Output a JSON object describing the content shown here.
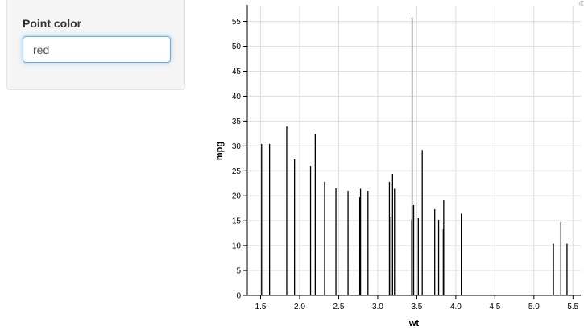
{
  "sidebar": {
    "label": "Point color",
    "input_value": "red"
  },
  "corner_mark": "©",
  "chart_data": {
    "type": "bar",
    "xlabel": "wt",
    "ylabel": "mpg",
    "xlim": [
      1.33,
      5.6
    ],
    "ylim": [
      0,
      58
    ],
    "x_ticks": [
      1.5,
      2.0,
      2.5,
      3.0,
      3.5,
      4.0,
      4.5,
      5.0,
      5.5
    ],
    "x_tick_labels": [
      "1.5",
      "2.0",
      "2.5",
      "3.0",
      "3.5",
      "4.0",
      "4.5",
      "5.0",
      "5.5"
    ],
    "y_ticks": [
      0,
      5,
      10,
      15,
      20,
      25,
      30,
      35,
      40,
      45,
      50,
      55
    ],
    "y_tick_labels": [
      "0",
      "5",
      "10",
      "15",
      "20",
      "25",
      "30",
      "35",
      "40",
      "45",
      "50",
      "55"
    ],
    "grid": true,
    "bar_color": "#000000",
    "x": [
      1.513,
      1.615,
      1.835,
      1.935,
      2.14,
      2.2,
      2.32,
      2.465,
      2.62,
      2.77,
      2.78,
      2.875,
      3.15,
      3.17,
      3.19,
      3.215,
      3.435,
      3.44,
      3.44,
      3.46,
      3.52,
      3.57,
      3.73,
      3.78,
      3.84,
      3.845,
      4.07,
      5.25,
      5.345,
      5.424
    ],
    "values": [
      30.4,
      30.4,
      33.9,
      27.3,
      26.0,
      32.4,
      22.8,
      21.5,
      21.0,
      19.7,
      21.4,
      21.0,
      22.8,
      15.8,
      24.4,
      21.4,
      15.2,
      55.8,
      18.0,
      18.1,
      15.5,
      29.2,
      17.3,
      15.2,
      13.3,
      19.2,
      16.4,
      10.4,
      14.7,
      10.4
    ]
  }
}
